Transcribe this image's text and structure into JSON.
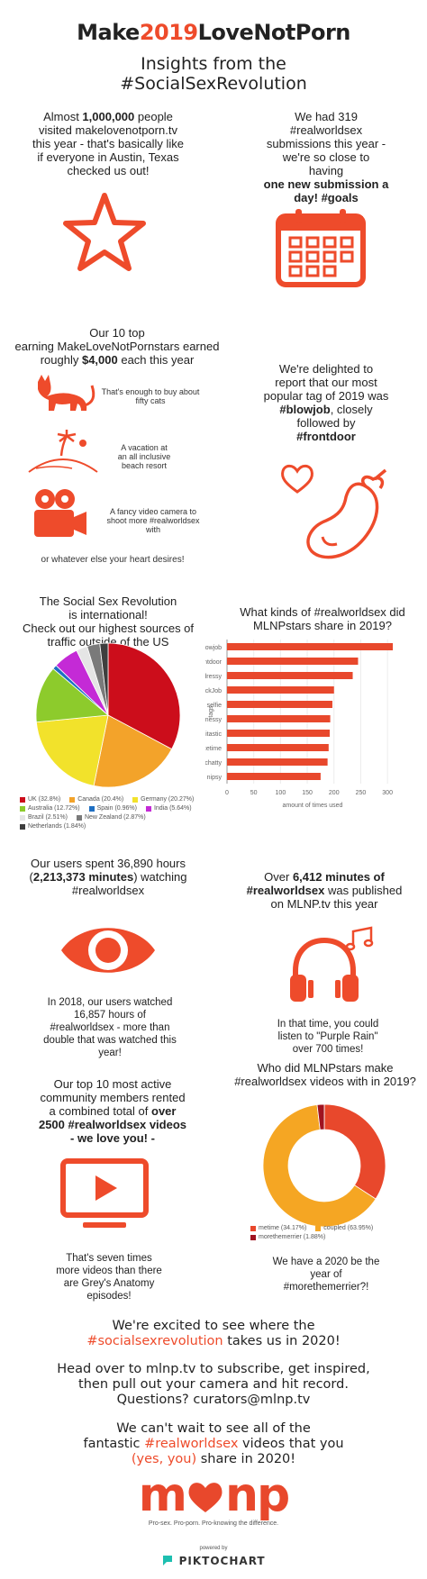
{
  "header": {
    "title_make": "Make",
    "title_year": "2019",
    "title_rest": "LoveNotPorn",
    "subtitle_line1": "Insights from the",
    "subtitle_line2": "#SocialSexRevolution"
  },
  "visitors": {
    "line1_a": "Almost ",
    "line1_b": "1,000,000",
    "line1_c": " people",
    "line2": "visited makelovenotporn.tv",
    "line3": "this year - that's basically like",
    "line4": "if everyone in Austin, Texas",
    "line5": "checked us out!"
  },
  "submissions": {
    "line1": "We had 319",
    "line2": "#realworldsex",
    "line3": "submissions this year -",
    "line4": "we're so close to",
    "line5": "having",
    "line6": "one new submission a",
    "line7": "day! #goals"
  },
  "earnings": {
    "line1": "Our 10 top",
    "line2": "earning MakeLoveNotPornstars earned",
    "line3_a": "roughly ",
    "line3_b": "$4,000",
    "line3_c": " each this year",
    "cats_line1": "That's enough to buy about",
    "cats_line2": "fifty cats",
    "vacation_line1": "A vacation at",
    "vacation_line2": "an all inclusive",
    "vacation_line3": "beach resort",
    "camera_line1": "A fancy video camera to",
    "camera_line2": "shoot more #realworldsex",
    "camera_line3": "with",
    "footer": "or whatever else your heart desires!"
  },
  "tags": {
    "line1": "We're delighted to",
    "line2": "report that our most",
    "line3": "popular tag of 2019 was",
    "line4_a": "#blowjob",
    "line4_b": ", closely",
    "line5": "followed by",
    "line6": "#frontdoor"
  },
  "international": {
    "line1": "The Social Sex Revolution",
    "line2": "is international!",
    "line3": "Check out our highest sources of",
    "line4": "traffic outside of the US"
  },
  "bar_title": {
    "line1": "What kinds of #realworldsex did",
    "line2": "MLNPstars share in 2019?"
  },
  "chart_data": [
    {
      "type": "pie",
      "slices": [
        {
          "label": "UK (32.8%)",
          "value": 32.8,
          "color": "#cc0d1b"
        },
        {
          "label": "Canada (20.4%)",
          "value": 20.4,
          "color": "#f3a32a"
        },
        {
          "label": "Germany (20.27%)",
          "value": 20.27,
          "color": "#f2e22b"
        },
        {
          "label": "Australia (12.72%)",
          "value": 12.72,
          "color": "#8dcb2c"
        },
        {
          "label": "Spain (0.96%)",
          "value": 0.96,
          "color": "#1f6fc2"
        },
        {
          "label": "India (5.64%)",
          "value": 5.64,
          "color": "#c42ad6"
        },
        {
          "label": "Brazil (2.51%)",
          "value": 2.51,
          "color": "#e5e5e5"
        },
        {
          "label": "New Zealand (2.87%)",
          "value": 2.87,
          "color": "#7a7a7a"
        },
        {
          "label": "Netherlands (1.84%)",
          "value": 1.84,
          "color": "#3e3e3e"
        }
      ]
    },
    {
      "type": "bar",
      "orientation": "horizontal",
      "categories": [
        "blowjob",
        "frontdoor",
        "dressy",
        "LickJob",
        "selfie",
        "messy",
        "Clitastic",
        "facetime",
        "chatty",
        "nipsy"
      ],
      "values": [
        310,
        245,
        235,
        200,
        197,
        193,
        192,
        190,
        188,
        175
      ],
      "xlabel": "amount of times used",
      "ylabel": "tags",
      "xlim": [
        0,
        320
      ],
      "xticks": [
        "0",
        "50",
        "100",
        "150",
        "200",
        "250",
        "300"
      ],
      "grid": true,
      "color": "#e8482c"
    },
    {
      "type": "pie",
      "donut": true,
      "slices": [
        {
          "label": "metime (34.17%)",
          "value": 34.17,
          "color": "#e8482c"
        },
        {
          "label": "coupled (63.95%)",
          "value": 63.95,
          "color": "#f5a623"
        },
        {
          "label": "morethemerrier (1.88%)",
          "value": 1.88,
          "color": "#a01320"
        }
      ]
    }
  ],
  "hours": {
    "line1": "Our users spent 36,890 hours",
    "line2_a": "(",
    "line2_b": "2,213,373 minutes",
    "line2_c": ") watching",
    "line3": "#realworldsex",
    "sub1": "In 2018, our users watched",
    "sub2": "16,857 hours of",
    "sub3": "#realworldsex - more than",
    "sub4": "double that was watched this",
    "sub5": "year!"
  },
  "minutes": {
    "line1_a": "Over ",
    "line1_b": "6,412 minutes of",
    "line2": "#realworldsex",
    "line2_c": " was published",
    "line3": "on MLNP.tv this year",
    "sub1": "In that time, you could",
    "sub2": "listen to \"Purple Rain\"",
    "sub3": "over 700 times!"
  },
  "partners": {
    "line1": "Who did MLNPstars make",
    "line2": "#realworldsex videos with in 2019?",
    "foot1": "We have a 2020 be the",
    "foot2": "year of",
    "foot3": "#morethemerrier?!"
  },
  "rentals": {
    "line1": "Our top 10 most active",
    "line2": "community members rented",
    "line3_a": "a combined total of ",
    "line3_b": "over",
    "line4": "2500 #realworldsex videos",
    "line5": "- we love you! -",
    "sub1": "That's seven times",
    "sub2": "more videos than there",
    "sub3": "are Grey's Anatomy",
    "sub4": "episodes!"
  },
  "closing": {
    "p1_line1": "We're excited to see where the",
    "p1_tag": "#socialsexrevolution",
    "p1_rest": " takes us in 2020!",
    "p2_line1": "Head over to mlnp.tv to subscribe, get inspired,",
    "p2_line2": "then pull out your camera and hit record.",
    "p2_line3": "Questions? curators@mlnp.tv",
    "p3_line1": "We can't wait to see all of the",
    "p3_line2_a": "fantastic ",
    "p3_line2_tag": "#realworldsex",
    "p3_line2_b": " videos that you",
    "p3_line3_a": "(yes, you)",
    "p3_line3_b": " share in 2020!"
  },
  "logo": {
    "text_m": "m",
    "text_np": "np",
    "tagline": "Pro-sex. Pro-porn. Pro-knowing the difference.",
    "powered": "powered by",
    "brand": "PIKTOCHART"
  },
  "colors": {
    "accent": "#ee4b2b",
    "text": "#222222"
  }
}
